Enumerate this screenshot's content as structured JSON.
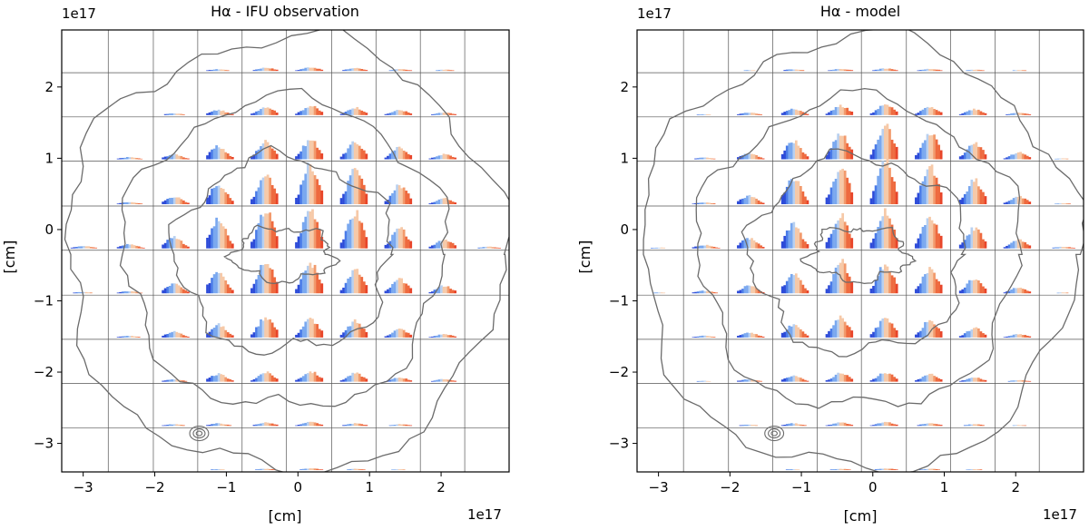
{
  "chart_data": [
    {
      "type": "bar",
      "subtype": "spatially-resolved spectral line profiles on a grid with contour overlay",
      "title": "Hα - IFU observation",
      "xlabel": "[cm]",
      "ylabel": "[cm]",
      "x_offset_text": "1e17",
      "y_offset_text": "1e17",
      "xlim": [
        -3.3,
        2.95
      ],
      "ylim": [
        -3.4,
        2.8
      ],
      "xticks": [
        -3,
        -2,
        -1,
        0,
        1,
        2
      ],
      "yticks": [
        -3,
        -2,
        -1,
        0,
        1,
        2
      ],
      "grid_x": [
        -2.65,
        -2.02,
        -1.4,
        -0.78,
        -0.16,
        0.47,
        1.09,
        1.71,
        2.33
      ],
      "grid_y": [
        2.2,
        1.58,
        0.96,
        0.33,
        -0.29,
        -0.92,
        -1.54,
        -2.16,
        -2.78
      ],
      "grid": true,
      "profile_colors": [
        "#2d4bd8",
        "#4a7be8",
        "#7aa8ef",
        "#b8d0f0",
        "#f6c9a8",
        "#f29a6c",
        "#ee6a3f",
        "#e8452a"
      ],
      "profile_bins": 12,
      "profiles": [
        [
          0.0,
          0.0,
          0.0,
          0.04,
          0.08,
          0.09,
          0.07,
          0.04,
          0.03,
          0.0
        ],
        [
          0.0,
          0.0,
          0.04,
          0.12,
          0.2,
          0.22,
          0.18,
          0.12,
          0.06,
          0.0
        ],
        [
          0.0,
          0.05,
          0.12,
          0.3,
          0.42,
          0.46,
          0.4,
          0.28,
          0.12,
          0.0
        ],
        [
          0.0,
          0.05,
          0.18,
          0.48,
          0.72,
          0.92,
          0.78,
          0.44,
          0.14,
          0.0
        ],
        [
          0.06,
          0.1,
          0.28,
          0.66,
          0.9,
          0.94,
          0.84,
          0.46,
          0.22,
          0.04
        ],
        [
          0.03,
          0.05,
          0.22,
          0.54,
          0.8,
          0.7,
          0.54,
          0.32,
          0.18,
          0.0
        ],
        [
          0.0,
          0.04,
          0.14,
          0.3,
          0.5,
          0.44,
          0.38,
          0.2,
          0.08,
          0.0
        ],
        [
          0.0,
          0.0,
          0.06,
          0.18,
          0.22,
          0.24,
          0.2,
          0.1,
          0.06,
          0.0
        ],
        [
          0.0,
          0.0,
          0.04,
          0.06,
          0.08,
          0.09,
          0.06,
          0.04,
          0.0,
          0.0
        ],
        [
          0.0,
          0.0,
          0.0,
          0.02,
          0.03,
          0.04,
          0.03,
          0.02,
          0.0,
          0.0
        ]
      ],
      "contour_levels": [
        "outer",
        "mid",
        "inner",
        "core"
      ]
    },
    {
      "type": "bar",
      "subtype": "spatially-resolved spectral line profiles on a grid with contour overlay",
      "title": "Hα - model",
      "xlabel": "[cm]",
      "ylabel": "[cm]",
      "x_offset_text": "1e17",
      "y_offset_text": "1e17",
      "xlim": [
        -3.3,
        2.95
      ],
      "ylim": [
        -3.4,
        2.8
      ],
      "xticks": [
        -3,
        -2,
        -1,
        0,
        1,
        2
      ],
      "yticks": [
        -3,
        -2,
        -1,
        0,
        1,
        2
      ],
      "grid_x": [
        -2.65,
        -2.02,
        -1.4,
        -0.78,
        -0.16,
        0.47,
        1.09,
        1.71,
        2.33
      ],
      "grid_y": [
        2.2,
        1.58,
        0.96,
        0.33,
        -0.29,
        -0.92,
        -1.54,
        -2.16,
        -2.78
      ],
      "grid": true,
      "profile_colors": [
        "#2d4bd8",
        "#4a7be8",
        "#7aa8ef",
        "#b8d0f0",
        "#f6c9a8",
        "#f29a6c",
        "#ee6a3f",
        "#e8452a"
      ],
      "profile_bins": 12,
      "profiles": [
        [
          0.0,
          0.0,
          0.02,
          0.04,
          0.05,
          0.06,
          0.05,
          0.03,
          0.02,
          0.0
        ],
        [
          0.0,
          0.02,
          0.06,
          0.16,
          0.22,
          0.24,
          0.2,
          0.14,
          0.06,
          0.0
        ],
        [
          0.0,
          0.04,
          0.14,
          0.42,
          0.62,
          0.76,
          0.64,
          0.4,
          0.16,
          0.02
        ],
        [
          0.0,
          0.04,
          0.2,
          0.6,
          0.86,
          0.98,
          0.88,
          0.56,
          0.18,
          0.02
        ],
        [
          0.02,
          0.08,
          0.24,
          0.56,
          0.8,
          0.84,
          0.78,
          0.48,
          0.2,
          0.04
        ],
        [
          0.02,
          0.06,
          0.18,
          0.44,
          0.74,
          0.68,
          0.56,
          0.34,
          0.14,
          0.02
        ],
        [
          0.0,
          0.04,
          0.12,
          0.3,
          0.48,
          0.46,
          0.4,
          0.22,
          0.08,
          0.0
        ],
        [
          0.0,
          0.02,
          0.06,
          0.14,
          0.2,
          0.22,
          0.18,
          0.1,
          0.04,
          0.0
        ],
        [
          0.0,
          0.0,
          0.03,
          0.06,
          0.08,
          0.09,
          0.07,
          0.04,
          0.02,
          0.0
        ],
        [
          0.0,
          0.0,
          0.0,
          0.02,
          0.03,
          0.04,
          0.03,
          0.02,
          0.0,
          0.0
        ]
      ],
      "contour_levels": [
        "outer",
        "mid",
        "inner",
        "core"
      ]
    }
  ]
}
